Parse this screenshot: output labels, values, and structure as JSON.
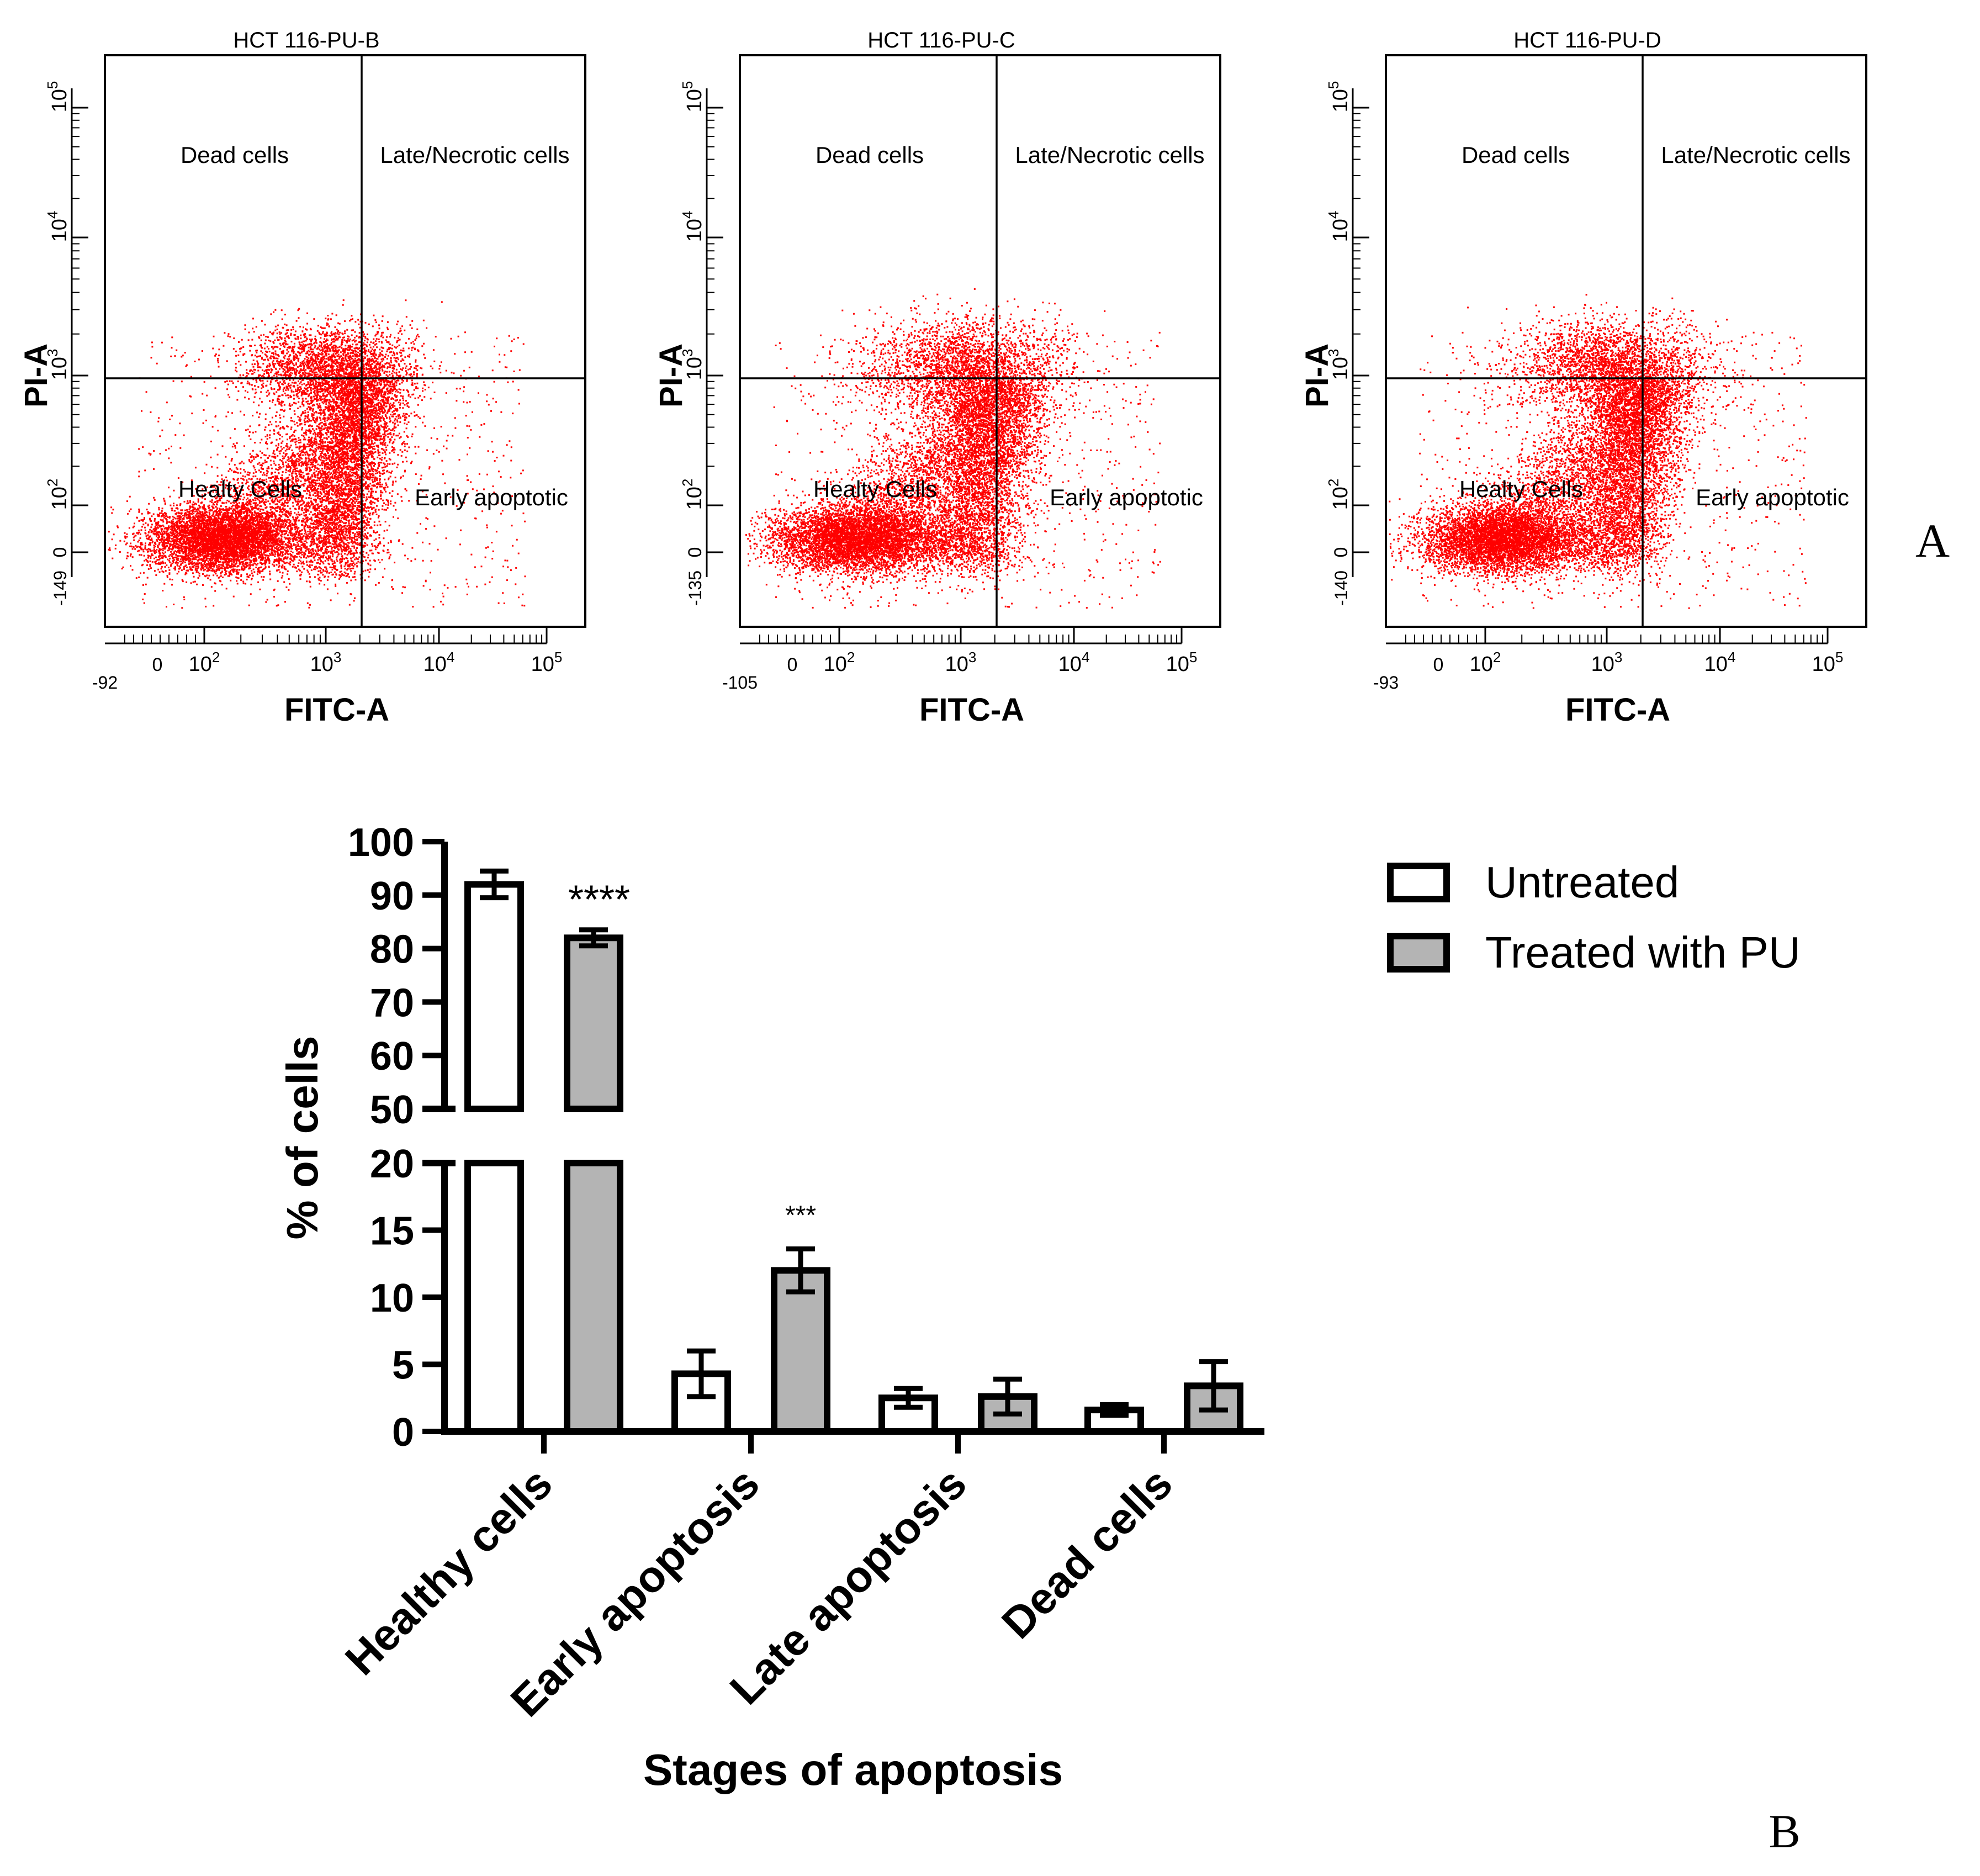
{
  "panel_a": {
    "label": "A",
    "tick_exponents": {
      "y": [
        "2",
        "3",
        "4",
        "5"
      ],
      "x": [
        "2",
        "3",
        "4",
        "5"
      ]
    },
    "plots": [
      {
        "title": "HCT 116-PU-B",
        "xlabel": "FITC-A",
        "ylabel": "PI-A",
        "x_min_label": "-92",
        "x_zero_label": "0",
        "y_min_label": "-149",
        "y_zero_label": "0",
        "quadrants": {
          "top_left": "Dead cells",
          "top_right": "Late/Necrotic cells",
          "bottom_left": "Healty Cells",
          "bottom_right": "Early apoptotic"
        },
        "dot_color": "#ff0000",
        "seed": 11,
        "spread": 1.0
      },
      {
        "title": "HCT 116-PU-C",
        "xlabel": "FITC-A",
        "ylabel": "PI-A",
        "x_min_label": "-105",
        "x_zero_label": "0",
        "y_min_label": "-135",
        "y_zero_label": "0",
        "quadrants": {
          "top_left": "Dead cells",
          "top_right": "Late/Necrotic cells",
          "bottom_left": "Healty Cells",
          "bottom_right": "Early apoptotic"
        },
        "dot_color": "#ff0000",
        "seed": 23,
        "spread": 1.15
      },
      {
        "title": "HCT 116-PU-D",
        "xlabel": "FITC-A",
        "ylabel": "PI-A",
        "x_min_label": "-93",
        "x_zero_label": "0",
        "y_min_label": "-140",
        "y_zero_label": "0",
        "quadrants": {
          "top_left": "Dead cells",
          "top_right": "Late/Necrotic cells",
          "bottom_left": "Healty Cells",
          "bottom_right": "Early apoptotic"
        },
        "dot_color": "#ff0000",
        "seed": 37,
        "spread": 1.1
      }
    ]
  },
  "panel_b": {
    "label": "B"
  },
  "chart_data": {
    "type": "bar",
    "title": "",
    "xlabel": "Stages of apoptosis",
    "ylabel": "% of cells",
    "categories": [
      "Healthy cells",
      "Early apoptosis",
      "Late apoptosis",
      "Dead cells"
    ],
    "axis_break": {
      "lower_range": [
        0,
        20
      ],
      "upper_range": [
        50,
        100
      ]
    },
    "yticks_lower": [
      0,
      5,
      10,
      15,
      20
    ],
    "yticks_upper": [
      50,
      60,
      70,
      80,
      90,
      100
    ],
    "series": [
      {
        "name": "Untreated",
        "values": [
          92,
          4.3,
          2.5,
          1.6
        ],
        "errors": [
          2.5,
          1.7,
          0.7,
          0.4
        ],
        "color": "#ffffff"
      },
      {
        "name": "Treated with PU",
        "values": [
          82,
          12,
          2.6,
          3.4
        ],
        "errors": [
          1.5,
          1.6,
          1.3,
          1.8
        ],
        "color": "#b4b4b4"
      }
    ],
    "significance": [
      {
        "category": "Healthy cells",
        "series": "Treated with PU",
        "text": "****"
      },
      {
        "category": "Early apoptosis",
        "series": "Treated with PU",
        "text": "***"
      }
    ],
    "legend": "top-right"
  }
}
